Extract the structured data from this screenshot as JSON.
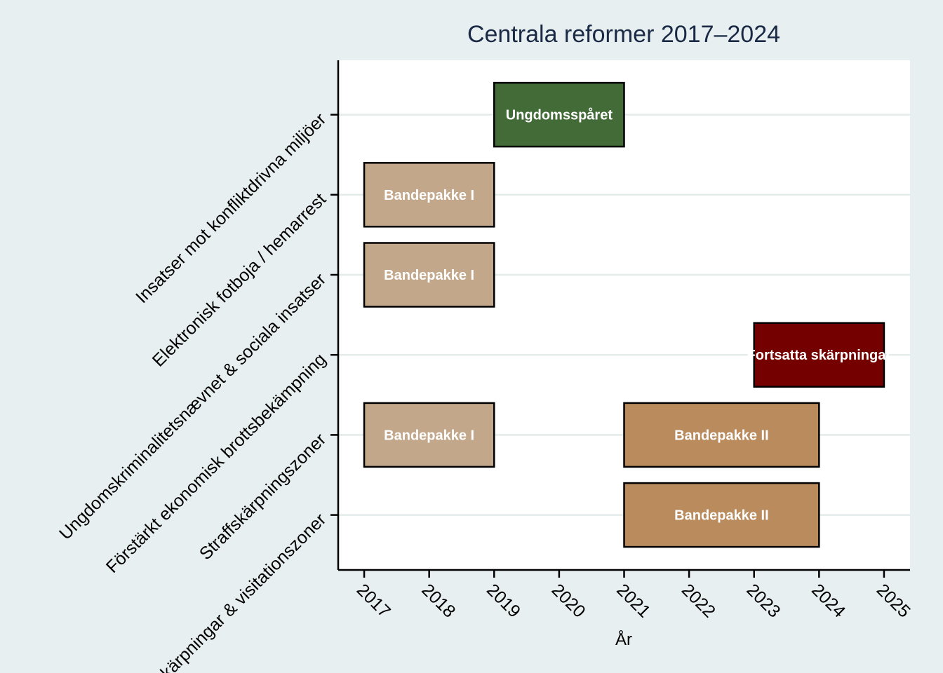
{
  "chart_data": {
    "type": "timeline",
    "title": "Centrala reformer 2017–2024",
    "xlabel": "År",
    "ylabel": "",
    "xlim": [
      2016.6,
      2025.4
    ],
    "x_ticks": [
      2017,
      2018,
      2019,
      2020,
      2021,
      2022,
      2023,
      2024,
      2025
    ],
    "grid": "horizontal",
    "categories": [
      "Insatser mot konfliktdrivna miljöer",
      "Elektronisk fotboja / hemarrest",
      "Ungdomskriminalitetsnævnet & sociala insatser",
      "Förstärkt ekonomisk brottsbekämpning",
      "Straffskärpningszoner",
      "Skärpningar & visitationszoner"
    ],
    "bars": [
      {
        "category": "Insatser mot konfliktdrivna miljöer",
        "start": 2019,
        "end": 2021,
        "label": "Ungdomsspåret",
        "color": "#426b37"
      },
      {
        "category": "Elektronisk fotboja / hemarrest",
        "start": 2017,
        "end": 2019,
        "label": "Bandepakke I",
        "color": "#c2a78a"
      },
      {
        "category": "Ungdomskriminalitetsnævnet & sociala insatser",
        "start": 2017,
        "end": 2019,
        "label": "Bandepakke I",
        "color": "#c2a78a"
      },
      {
        "category": "Förstärkt ekonomisk brottsbekämpning",
        "start": 2023,
        "end": 2025,
        "label": "Fortsatta skärpningar",
        "color": "#750000"
      },
      {
        "category": "Straffskärpningszoner",
        "start": 2017,
        "end": 2019,
        "label": "Bandepakke I",
        "color": "#c2a78a"
      },
      {
        "category": "Straffskärpningszoner",
        "start": 2021,
        "end": 2024,
        "label": "Bandepakke II",
        "color": "#b98b5d"
      },
      {
        "category": "Skärpningar & visitationszoner",
        "start": 2021,
        "end": 2024,
        "label": "Bandepakke II",
        "color": "#b98b5d"
      }
    ]
  }
}
